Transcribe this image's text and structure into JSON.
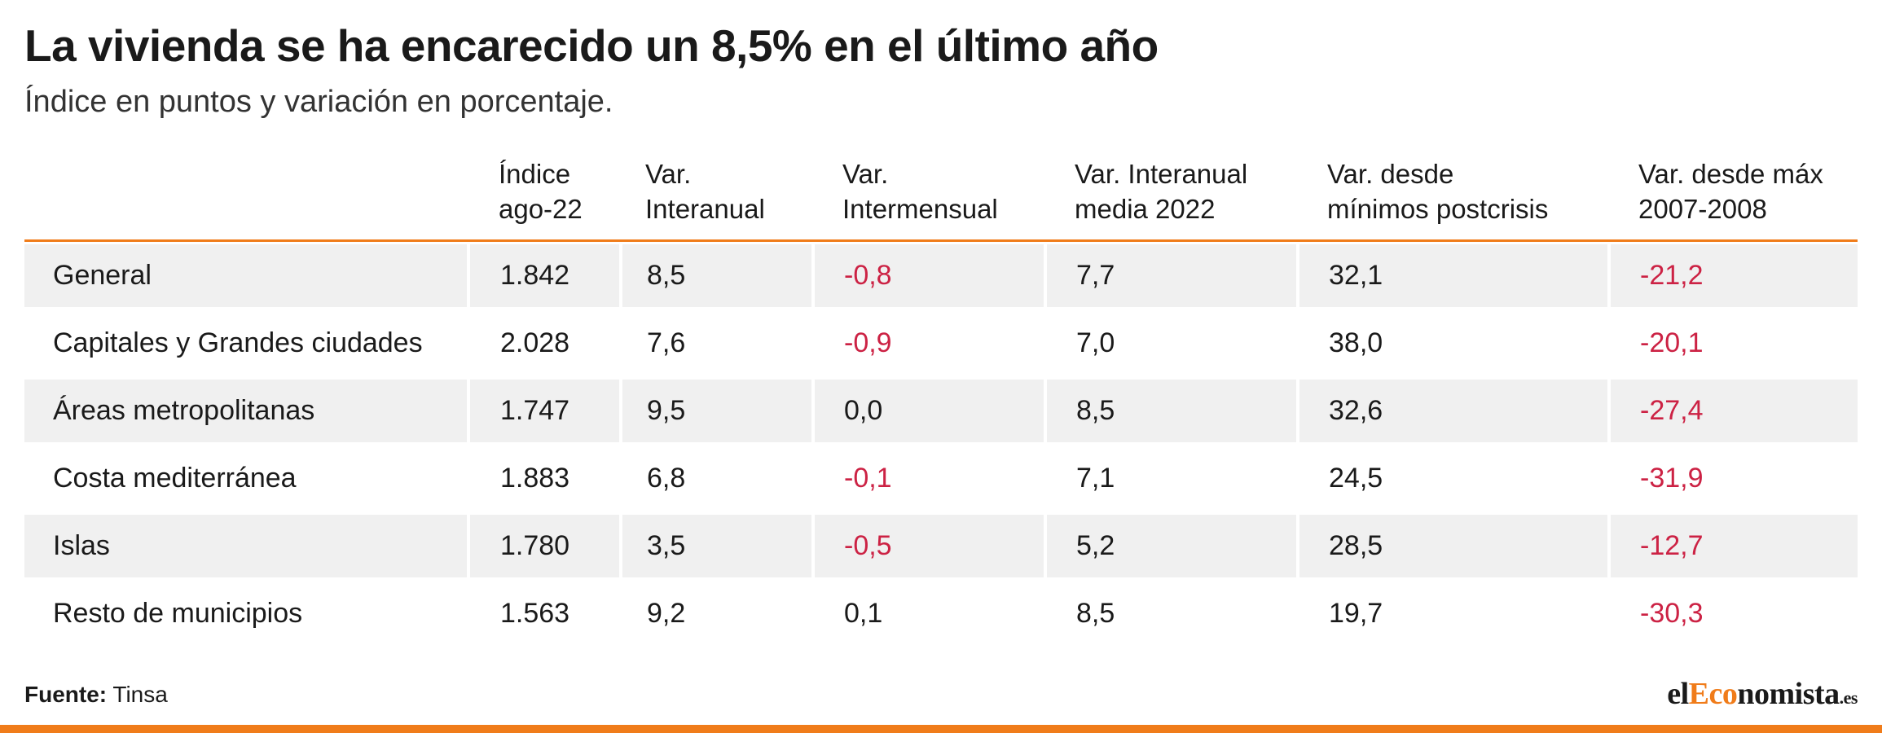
{
  "title": "La vivienda se ha encarecido un 8,5% en el último año",
  "subtitle": "Índice en puntos y variación en porcentaje.",
  "source_label": "Fuente:",
  "source_value": "Tinsa",
  "logo": {
    "part1": "el",
    "part2": "Eco",
    "part3": "nomista",
    "tld": ".es"
  },
  "colors": {
    "accent": "#f07c1a",
    "negative": "#cc2244",
    "row_shade": "#f0f0f0"
  },
  "chart_data": {
    "type": "table",
    "title": "La vivienda se ha encarecido un 8,5% en el último año",
    "subtitle": "Índice en puntos y variación en porcentaje.",
    "columns": [
      {
        "line1": "",
        "line2": ""
      },
      {
        "line1": "Índice",
        "line2": "ago-22"
      },
      {
        "line1": "Var.",
        "line2": "Interanual"
      },
      {
        "line1": "Var.",
        "line2": "Intermensual"
      },
      {
        "line1": "Var. Interanual",
        "line2": "media 2022"
      },
      {
        "line1": "Var. desde",
        "line2": "mínimos postcrisis"
      },
      {
        "line1": "Var. desde máx",
        "line2": "2007-2008"
      }
    ],
    "rows": [
      [
        "General",
        "1.842",
        "8,5",
        "-0,8",
        "7,7",
        "32,1",
        "-21,2"
      ],
      [
        "Capitales y Grandes ciudades",
        "2.028",
        "7,6",
        "-0,9",
        "7,0",
        "38,0",
        "-20,1"
      ],
      [
        "Áreas metropolitanas",
        "1.747",
        "9,5",
        "0,0",
        "8,5",
        "32,6",
        "-27,4"
      ],
      [
        "Costa mediterránea",
        "1.883",
        "6,8",
        "-0,1",
        "7,1",
        "24,5",
        "-31,9"
      ],
      [
        "Islas",
        "1.780",
        "3,5",
        "-0,5",
        "5,2",
        "28,5",
        "-12,7"
      ],
      [
        "Resto de municipios",
        "1.563",
        "9,2",
        "0,1",
        "8,5",
        "19,7",
        "-30,3"
      ]
    ]
  }
}
